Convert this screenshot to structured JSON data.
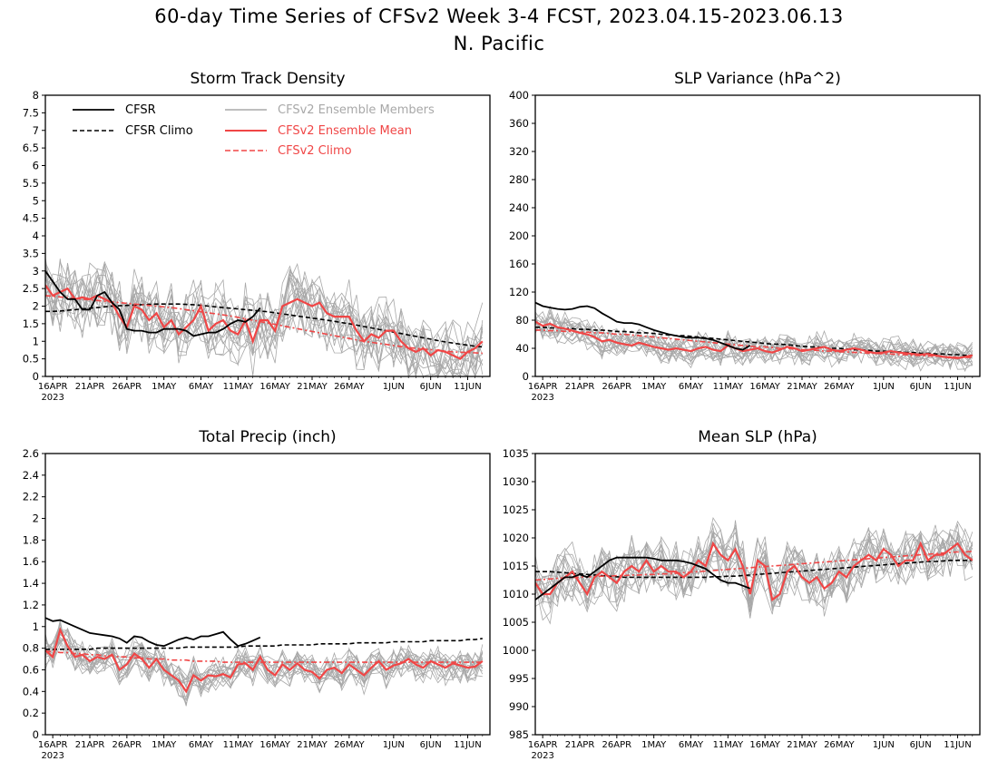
{
  "title_line1": "60-day Time Series of CFSv2 Week 3-4 FCST, 2023.04.15-2023.06.13",
  "title_line2": "N. Pacific",
  "legend": {
    "cfsr": "CFSR",
    "cfsr_climo": "CFSR Climo",
    "members": "CFSv2 Ensemble Members",
    "ens_mean": "CFSv2 Ensemble Mean",
    "cfsv2_climo": "CFSv2 Climo"
  },
  "colors": {
    "black": "#000000",
    "gray": "#a8a8a8",
    "red": "#f04646"
  },
  "x_ticks": [
    "16APR",
    "21APR",
    "26APR",
    "1MAY",
    "6MAY",
    "11MAY",
    "16MAY",
    "21MAY",
    "26MAY",
    "1JUN",
    "6JUN",
    "11JUN"
  ],
  "x_year": "2023",
  "chart_data": [
    {
      "type": "line",
      "title": "Storm Track Density",
      "ylim": [
        0,
        8
      ],
      "yticks": [
        "0",
        "0.5",
        "1",
        "1.5",
        "2",
        "2.5",
        "3",
        "3.5",
        "4",
        "4.5",
        "5",
        "5.5",
        "6",
        "6.5",
        "7",
        "7.5",
        "8"
      ],
      "x_start": "2023-04-15",
      "n_days": 60,
      "legend_position": "top-left",
      "series": [
        {
          "name": "CFSR",
          "values": [
            3.0,
            2.7,
            2.4,
            2.2,
            2.2,
            1.9,
            1.9,
            2.3,
            2.4,
            2.1,
            1.9,
            1.35,
            1.3,
            1.3,
            1.25,
            1.25,
            1.35,
            1.35,
            1.35,
            1.3,
            1.15,
            1.2,
            1.25,
            1.25,
            1.35,
            1.5,
            1.6,
            1.55,
            1.7,
            1.95
          ]
        },
        {
          "name": "CFSR Climo",
          "values": [
            1.85,
            1.85,
            1.86,
            1.88,
            1.9,
            1.92,
            1.94,
            1.96,
            1.98,
            2.0,
            2.01,
            2.02,
            2.03,
            2.04,
            2.05,
            2.06,
            2.06,
            2.06,
            2.06,
            2.05,
            2.04,
            2.02,
            2.0,
            1.98,
            1.96,
            1.94,
            1.92,
            1.9,
            1.88,
            1.86,
            1.84,
            1.81,
            1.78,
            1.75,
            1.72,
            1.69,
            1.66,
            1.63,
            1.6,
            1.57,
            1.53,
            1.5,
            1.46,
            1.42,
            1.38,
            1.34,
            1.3,
            1.26,
            1.22,
            1.18,
            1.14,
            1.1,
            1.06,
            1.02,
            0.98,
            0.95,
            0.92,
            0.89,
            0.86,
            0.84
          ]
        },
        {
          "name": "CFSv2 Ensemble Mean",
          "values": [
            2.6,
            2.3,
            2.4,
            2.5,
            2.2,
            2.25,
            2.2,
            2.3,
            2.2,
            2.1,
            1.7,
            1.4,
            2.0,
            1.9,
            1.6,
            1.8,
            1.4,
            1.6,
            1.2,
            1.4,
            1.6,
            2.0,
            1.3,
            1.5,
            1.6,
            1.3,
            1.2,
            1.6,
            1.0,
            1.6,
            1.6,
            1.3,
            2.0,
            2.1,
            2.2,
            2.1,
            2.0,
            2.1,
            1.8,
            1.7,
            1.7,
            1.7,
            1.3,
            1.0,
            1.2,
            1.1,
            1.3,
            1.3,
            1.0,
            0.8,
            0.7,
            0.8,
            0.6,
            0.75,
            0.7,
            0.6,
            0.5,
            0.7,
            0.8,
            1.0
          ]
        },
        {
          "name": "CFSv2 Climo",
          "values": [
            2.3,
            2.28,
            2.26,
            2.24,
            2.22,
            2.2,
            2.18,
            2.16,
            2.14,
            2.12,
            2.1,
            2.08,
            2.06,
            2.04,
            2.02,
            2.0,
            1.98,
            1.96,
            1.93,
            1.9,
            1.87,
            1.84,
            1.81,
            1.78,
            1.75,
            1.72,
            1.68,
            1.64,
            1.6,
            1.56,
            1.52,
            1.48,
            1.44,
            1.4,
            1.36,
            1.32,
            1.28,
            1.24,
            1.2,
            1.16,
            1.12,
            1.08,
            1.04,
            1.0,
            0.97,
            0.94,
            0.91,
            0.88,
            0.85,
            0.82,
            0.8,
            0.78,
            0.76,
            0.74,
            0.72,
            0.7,
            0.69,
            0.68,
            0.67,
            0.66
          ]
        }
      ]
    },
    {
      "type": "line",
      "title": "SLP Variance (hPa^2)",
      "ylim": [
        0,
        400
      ],
      "yticks": [
        "0",
        "40",
        "80",
        "120",
        "160",
        "200",
        "240",
        "280",
        "320",
        "360",
        "400"
      ],
      "x_start": "2023-04-15",
      "n_days": 60,
      "series": [
        {
          "name": "CFSR",
          "values": [
            105,
            100,
            98,
            96,
            95,
            96,
            99,
            100,
            97,
            90,
            84,
            78,
            76,
            76,
            74,
            70,
            66,
            63,
            60,
            58,
            56,
            55,
            55,
            54,
            52,
            48,
            44,
            40,
            38,
            44
          ]
        },
        {
          "name": "CFSR Climo",
          "values": [
            70,
            70,
            69,
            69,
            68,
            68,
            67,
            67,
            66,
            66,
            65,
            64,
            64,
            63,
            62,
            62,
            61,
            60,
            59,
            58,
            58,
            57,
            56,
            55,
            54,
            53,
            52,
            51,
            50,
            49,
            48,
            47,
            46,
            46,
            45,
            44,
            43,
            42,
            42,
            41,
            40,
            40,
            39,
            38,
            38,
            37,
            36,
            36,
            35,
            35,
            34,
            34,
            33,
            33,
            32,
            32,
            31,
            31,
            30,
            30
          ]
        },
        {
          "name": "CFSv2 Ensemble Mean",
          "values": [
            78,
            72,
            75,
            70,
            68,
            65,
            62,
            60,
            56,
            50,
            52,
            48,
            46,
            44,
            48,
            45,
            42,
            40,
            38,
            40,
            38,
            36,
            40,
            42,
            38,
            36,
            44,
            40,
            36,
            38,
            40,
            36,
            34,
            38,
            42,
            40,
            36,
            38,
            40,
            42,
            38,
            36,
            38,
            40,
            38,
            35,
            33,
            34,
            36,
            34,
            33,
            32,
            31,
            32,
            30,
            28,
            27,
            26,
            28,
            30
          ]
        },
        {
          "name": "CFSv2 Climo",
          "values": [
            66,
            66,
            65,
            65,
            64,
            64,
            63,
            63,
            62,
            62,
            61,
            60,
            60,
            59,
            58,
            57,
            56,
            55,
            54,
            53,
            52,
            51,
            50,
            49,
            48,
            47,
            46,
            45,
            44,
            43,
            42,
            42,
            41,
            40,
            40,
            39,
            38,
            38,
            37,
            36,
            36,
            35,
            35,
            34,
            34,
            33,
            33,
            32,
            32,
            31,
            31,
            30,
            30,
            29,
            29,
            28,
            28,
            27,
            27,
            27
          ]
        }
      ]
    },
    {
      "type": "line",
      "title": "Total Precip (inch)",
      "ylim": [
        0,
        2.6
      ],
      "yticks": [
        "0",
        "0.2",
        "0.4",
        "0.6",
        "0.8",
        "1",
        "1.2",
        "1.4",
        "1.6",
        "1.8",
        "2",
        "2.2",
        "2.4",
        "2.6"
      ],
      "x_start": "2023-04-15",
      "n_days": 60,
      "series": [
        {
          "name": "CFSR",
          "values": [
            1.08,
            1.05,
            1.06,
            1.03,
            1.0,
            0.97,
            0.94,
            0.93,
            0.92,
            0.91,
            0.89,
            0.85,
            0.91,
            0.9,
            0.86,
            0.83,
            0.82,
            0.85,
            0.88,
            0.9,
            0.88,
            0.91,
            0.91,
            0.93,
            0.95,
            0.88,
            0.82,
            0.84,
            0.87,
            0.9
          ]
        },
        {
          "name": "CFSR Climo",
          "values": [
            0.79,
            0.79,
            0.79,
            0.79,
            0.79,
            0.79,
            0.79,
            0.8,
            0.8,
            0.8,
            0.8,
            0.8,
            0.8,
            0.8,
            0.8,
            0.8,
            0.8,
            0.8,
            0.8,
            0.81,
            0.81,
            0.81,
            0.81,
            0.81,
            0.81,
            0.81,
            0.81,
            0.82,
            0.82,
            0.82,
            0.82,
            0.82,
            0.83,
            0.83,
            0.83,
            0.83,
            0.83,
            0.84,
            0.84,
            0.84,
            0.84,
            0.84,
            0.85,
            0.85,
            0.85,
            0.85,
            0.85,
            0.86,
            0.86,
            0.86,
            0.86,
            0.86,
            0.87,
            0.87,
            0.87,
            0.87,
            0.87,
            0.88,
            0.88,
            0.89
          ]
        },
        {
          "name": "CFSv2 Ensemble Mean",
          "values": [
            0.78,
            0.72,
            0.97,
            0.82,
            0.72,
            0.74,
            0.68,
            0.72,
            0.7,
            0.74,
            0.6,
            0.65,
            0.75,
            0.7,
            0.62,
            0.7,
            0.6,
            0.55,
            0.5,
            0.4,
            0.55,
            0.5,
            0.55,
            0.54,
            0.56,
            0.53,
            0.65,
            0.66,
            0.6,
            0.72,
            0.6,
            0.55,
            0.65,
            0.6,
            0.66,
            0.6,
            0.58,
            0.52,
            0.6,
            0.62,
            0.57,
            0.65,
            0.6,
            0.55,
            0.62,
            0.68,
            0.6,
            0.64,
            0.66,
            0.7,
            0.65,
            0.62,
            0.68,
            0.65,
            0.62,
            0.66,
            0.64,
            0.62,
            0.63,
            0.68
          ]
        },
        {
          "name": "CFSv2 Climo",
          "values": [
            0.77,
            0.77,
            0.76,
            0.76,
            0.75,
            0.75,
            0.74,
            0.74,
            0.73,
            0.73,
            0.72,
            0.72,
            0.71,
            0.71,
            0.7,
            0.7,
            0.7,
            0.69,
            0.69,
            0.69,
            0.68,
            0.68,
            0.68,
            0.68,
            0.67,
            0.67,
            0.67,
            0.67,
            0.67,
            0.67,
            0.67,
            0.67,
            0.67,
            0.67,
            0.67,
            0.67,
            0.67,
            0.67,
            0.67,
            0.67,
            0.67,
            0.67,
            0.67,
            0.67,
            0.67,
            0.67,
            0.67,
            0.67,
            0.67,
            0.67,
            0.67,
            0.67,
            0.67,
            0.67,
            0.67,
            0.67,
            0.67,
            0.67,
            0.67,
            0.67
          ]
        }
      ]
    },
    {
      "type": "line",
      "title": "Mean SLP (hPa)",
      "ylim": [
        985,
        1035
      ],
      "yticks": [
        "985",
        "990",
        "995",
        "1000",
        "1005",
        "1010",
        "1015",
        "1020",
        "1025",
        "1030",
        "1035"
      ],
      "x_start": "2023-04-15",
      "n_days": 60,
      "series": [
        {
          "name": "CFSR",
          "values": [
            1009,
            1010,
            1011,
            1012,
            1013,
            1013,
            1013.5,
            1013,
            1014,
            1015,
            1016,
            1016.5,
            1016.5,
            1016.5,
            1016.5,
            1016.5,
            1016.3,
            1016,
            1016,
            1016,
            1015.8,
            1015.5,
            1015,
            1014.5,
            1013.5,
            1012.5,
            1012,
            1012,
            1011.5,
            1011
          ]
        },
        {
          "name": "CFSR Climo",
          "values": [
            1014,
            1014,
            1014,
            1013.9,
            1013.8,
            1013.7,
            1013.6,
            1013.5,
            1013.4,
            1013.3,
            1013.2,
            1013.1,
            1013,
            1013,
            1013,
            1013,
            1013,
            1013,
            1013,
            1013,
            1013,
            1013,
            1013,
            1013,
            1013.1,
            1013.1,
            1013.2,
            1013.2,
            1013.3,
            1013.4,
            1013.5,
            1013.6,
            1013.7,
            1013.8,
            1013.9,
            1014,
            1014.1,
            1014.2,
            1014.3,
            1014.4,
            1014.5,
            1014.6,
            1014.7,
            1014.8,
            1014.9,
            1015,
            1015.1,
            1015.2,
            1015.3,
            1015.4,
            1015.5,
            1015.6,
            1015.7,
            1015.8,
            1015.8,
            1015.9,
            1016,
            1016,
            1016,
            1016
          ]
        },
        {
          "name": "CFSv2 Ensemble Mean",
          "values": [
            1012,
            1010,
            1010,
            1012,
            1013,
            1014,
            1012,
            1010,
            1013,
            1014,
            1013,
            1012,
            1014,
            1015,
            1014,
            1016,
            1014,
            1015,
            1014,
            1014,
            1013,
            1014,
            1016,
            1015,
            1019,
            1017,
            1016,
            1018,
            1015,
            1010,
            1016,
            1015,
            1009,
            1010,
            1014,
            1015,
            1013,
            1012,
            1013,
            1011,
            1012,
            1014,
            1013,
            1015,
            1016,
            1017,
            1016,
            1018,
            1017,
            1015,
            1016,
            1016,
            1019,
            1016,
            1017,
            1017,
            1018,
            1019,
            1017,
            1016
          ]
        },
        {
          "name": "CFSv2 Climo",
          "values": [
            1012.5,
            1012.6,
            1012.7,
            1012.8,
            1012.9,
            1013,
            1013,
            1013.1,
            1013.1,
            1013.2,
            1013.2,
            1013.3,
            1013.3,
            1013.4,
            1013.4,
            1013.5,
            1013.5,
            1013.6,
            1013.6,
            1013.7,
            1013.8,
            1013.9,
            1014,
            1014.1,
            1014.2,
            1014.3,
            1014.4,
            1014.5,
            1014.6,
            1014.7,
            1014.8,
            1014.9,
            1015,
            1015.1,
            1015.2,
            1015.3,
            1015.4,
            1015.5,
            1015.6,
            1015.7,
            1015.8,
            1015.9,
            1016,
            1016.1,
            1016.2,
            1016.3,
            1016.4,
            1016.5,
            1016.6,
            1016.7,
            1016.8,
            1016.9,
            1017,
            1017.1,
            1017.2,
            1017.3,
            1017.4,
            1017.5,
            1017.5,
            1017.6
          ]
        }
      ]
    }
  ]
}
